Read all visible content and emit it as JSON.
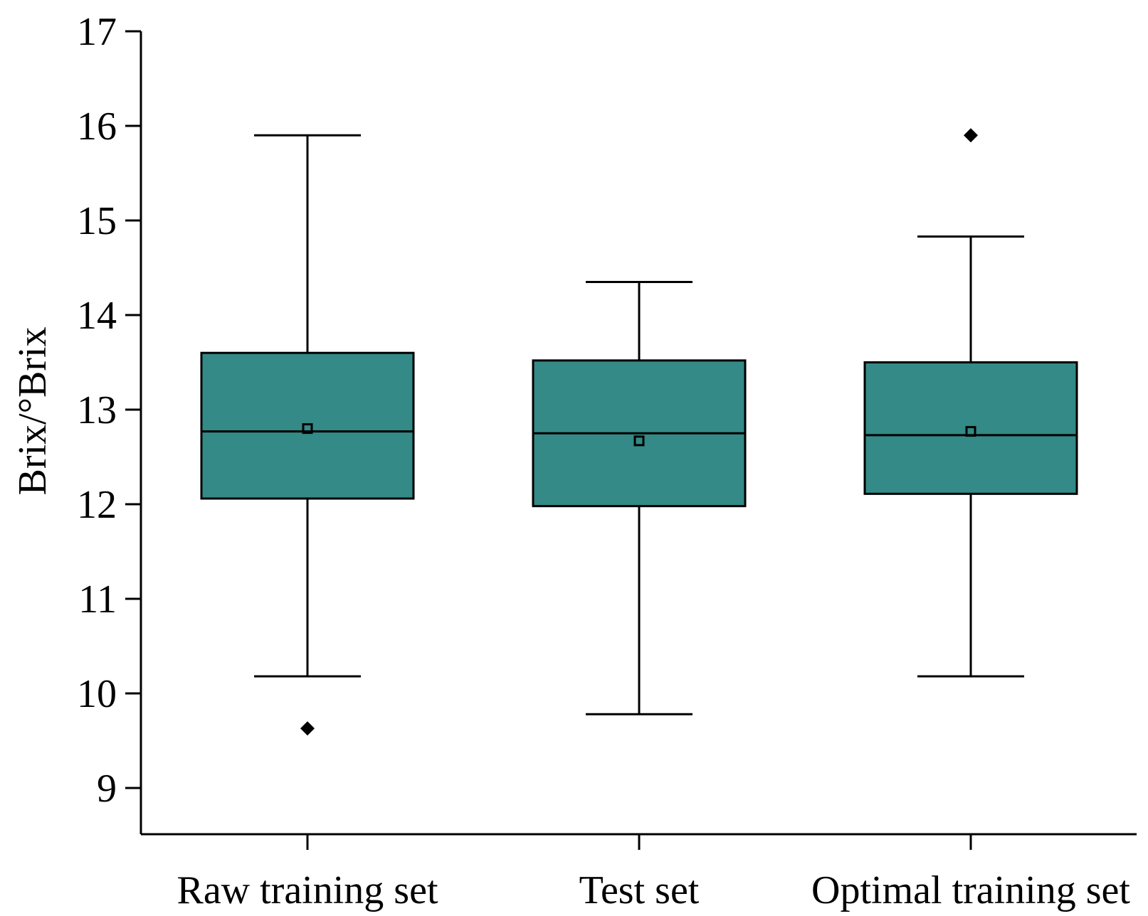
{
  "chart_data": {
    "type": "box",
    "title": "",
    "xlabel": "",
    "ylabel": "Brix/°Brix",
    "ylim": [
      8.5,
      17
    ],
    "yticks": [
      9,
      10,
      11,
      12,
      13,
      14,
      15,
      16,
      17
    ],
    "grid": false,
    "box_color": "#338a87",
    "categories": [
      "Raw training set",
      "Test set",
      "Optimal training set"
    ],
    "boxes": [
      {
        "category": "Raw training set",
        "whisker_low": 10.18,
        "q1": 12.06,
        "median": 12.77,
        "q3": 13.6,
        "whisker_high": 15.9,
        "mean": 12.8,
        "outliers": [
          9.63
        ]
      },
      {
        "category": "Test set",
        "whisker_low": 9.78,
        "q1": 11.98,
        "median": 12.75,
        "q3": 13.52,
        "whisker_high": 14.35,
        "mean": 12.67,
        "outliers": []
      },
      {
        "category": "Optimal training set",
        "whisker_low": 10.18,
        "q1": 12.11,
        "median": 12.73,
        "q3": 13.5,
        "whisker_high": 14.83,
        "mean": 12.77,
        "outliers": [
          15.9
        ]
      }
    ]
  }
}
